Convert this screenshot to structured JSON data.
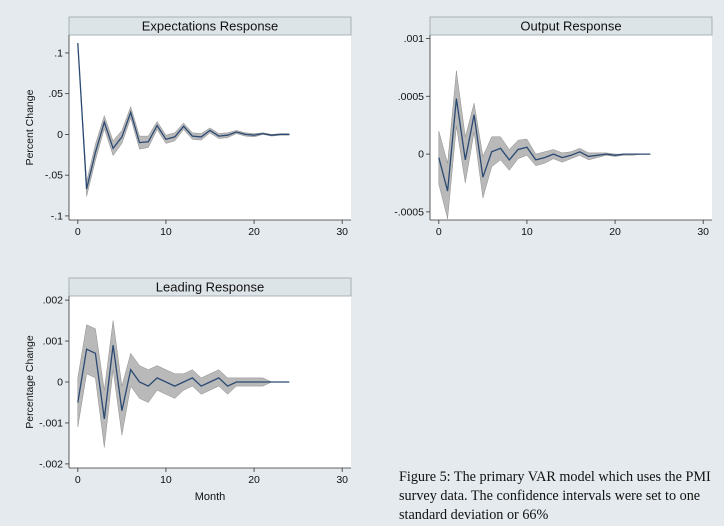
{
  "colors": {
    "page_bg": "#e4eaee",
    "plot_bg": "#ffffff",
    "title_bg": "#dde4e8",
    "band_fill": "#b9b9b9",
    "line": "#2b4a73"
  },
  "caption": "Figure 5: The primary VAR model which uses the PMI survey data. The confidence intervals were set to one standard deviation or 66%",
  "chart_data": [
    {
      "type": "line",
      "title": "Expectations Response",
      "xlabel": "",
      "ylabel": "Percent Change",
      "xlim": [
        -1,
        31
      ],
      "ylim": [
        -0.105,
        0.122
      ],
      "xticks": [
        0,
        10,
        20,
        30
      ],
      "xtick_labels": [
        "0",
        "10",
        "20",
        "30"
      ],
      "yticks": [
        0.1,
        0.05,
        0,
        -0.05,
        -0.1
      ],
      "ytick_labels": [
        ".1",
        ".05",
        "0",
        "-.05",
        "-.1"
      ],
      "x": [
        0,
        1,
        2,
        3,
        4,
        5,
        6,
        7,
        8,
        9,
        10,
        11,
        12,
        13,
        14,
        15,
        16,
        17,
        18,
        19,
        20,
        21,
        22,
        23,
        24
      ],
      "series": [
        {
          "name": "response",
          "values": [
            0.112,
            -0.067,
            -0.022,
            0.015,
            -0.017,
            -0.003,
            0.027,
            -0.01,
            -0.009,
            0.011,
            -0.006,
            -0.003,
            0.01,
            -0.002,
            -0.003,
            0.005,
            -0.002,
            -0.001,
            0.003,
            0.0,
            -0.001,
            0.001,
            -0.001,
            0.0,
            0.0
          ]
        },
        {
          "name": "upper",
          "values": [
            0.112,
            -0.058,
            -0.012,
            0.023,
            -0.008,
            0.005,
            0.034,
            -0.002,
            -0.002,
            0.016,
            -0.001,
            0.002,
            0.014,
            0.002,
            0.001,
            0.008,
            0.001,
            0.002,
            0.005,
            0.002,
            0.001,
            0.002,
            0.0,
            0.001,
            0.001
          ]
        },
        {
          "name": "lower",
          "values": [
            0.112,
            -0.076,
            -0.032,
            0.007,
            -0.026,
            -0.011,
            0.02,
            -0.018,
            -0.016,
            0.006,
            -0.011,
            -0.008,
            0.006,
            -0.006,
            -0.007,
            0.002,
            -0.005,
            -0.004,
            0.001,
            -0.002,
            -0.003,
            0.0,
            -0.002,
            -0.001,
            -0.001
          ]
        }
      ]
    },
    {
      "type": "line",
      "title": "Output Response",
      "xlabel": "",
      "ylabel": "",
      "xlim": [
        -1,
        31
      ],
      "ylim": [
        -0.00057,
        0.00103
      ],
      "xticks": [
        0,
        10,
        20,
        30
      ],
      "xtick_labels": [
        "0",
        "10",
        "20",
        "30"
      ],
      "yticks": [
        0.001,
        0.0005,
        0,
        -0.0005
      ],
      "ytick_labels": [
        ".001",
        ".0005",
        "0",
        "-.0005"
      ],
      "x": [
        0,
        1,
        2,
        3,
        4,
        5,
        6,
        7,
        8,
        9,
        10,
        11,
        12,
        13,
        14,
        15,
        16,
        17,
        18,
        19,
        20,
        21,
        22,
        23,
        24
      ],
      "series": [
        {
          "name": "response",
          "values": [
            -3e-05,
            -0.00032,
            0.00048,
            -5e-05,
            0.00034,
            -0.0002,
            2e-05,
            5e-05,
            -5e-05,
            4e-05,
            6e-05,
            -5e-05,
            -3e-05,
            0.0,
            -3e-05,
            -1e-05,
            2e-05,
            -2e-05,
            -1e-05,
            0.0,
            -1e-05,
            0.0,
            0.0,
            0.0,
            0.0
          ]
        },
        {
          "name": "upper",
          "values": [
            0.0002,
            -8e-05,
            0.00072,
            0.00015,
            0.00044,
            -2e-05,
            0.00015,
            0.00015,
            4e-05,
            0.00012,
            0.00013,
            0.0,
            2e-05,
            4e-05,
            1e-05,
            2e-05,
            5e-05,
            1e-05,
            1e-05,
            1e-05,
            0.0,
            0.0,
            0.0,
            0.0,
            0.0
          ]
        },
        {
          "name": "lower",
          "values": [
            -0.00026,
            -0.00056,
            0.00024,
            -0.00025,
            0.00019,
            -0.00038,
            -0.00011,
            -5e-05,
            -0.00014,
            -4e-05,
            -1e-05,
            -0.0001,
            -8e-05,
            -4e-05,
            -7e-05,
            -4e-05,
            -1e-05,
            -5e-05,
            -3e-05,
            -1e-05,
            -2e-05,
            -1e-05,
            -1e-05,
            0.0,
            0.0
          ]
        }
      ]
    },
    {
      "type": "line",
      "title": "Leading Response",
      "xlabel": "Month",
      "ylabel": "Percentage Change",
      "xlim": [
        -1,
        31
      ],
      "ylim": [
        -0.0021,
        0.0021
      ],
      "xticks": [
        0,
        10,
        20,
        30
      ],
      "xtick_labels": [
        "0",
        "10",
        "20",
        "30"
      ],
      "yticks": [
        0.002,
        0.001,
        0,
        -0.001,
        -0.002
      ],
      "ytick_labels": [
        ".002",
        ".001",
        "0",
        "-.001",
        "-.002"
      ],
      "x": [
        0,
        1,
        2,
        3,
        4,
        5,
        6,
        7,
        8,
        9,
        10,
        11,
        12,
        13,
        14,
        15,
        16,
        17,
        18,
        19,
        20,
        21,
        22,
        23,
        24
      ],
      "series": [
        {
          "name": "response",
          "values": [
            -0.0005,
            0.0008,
            0.0007,
            -0.0009,
            0.0009,
            -0.0007,
            0.0003,
            0.0,
            -0.0001,
            0.0001,
            0.0,
            -0.0001,
            0.0,
            0.0001,
            -0.0001,
            0.0,
            0.0001,
            -0.0001,
            0.0,
            0.0,
            0.0,
            0.0,
            0.0,
            0.0,
            0.0
          ]
        },
        {
          "name": "upper",
          "values": [
            0.0001,
            0.0014,
            0.0013,
            -0.0002,
            0.0015,
            -0.0001,
            0.0007,
            0.0004,
            0.0003,
            0.0004,
            0.0003,
            0.0002,
            0.0002,
            0.0003,
            0.0001,
            0.0002,
            0.0003,
            0.0001,
            0.0001,
            0.0001,
            0.0001,
            0.0001,
            0.0,
            0.0,
            0.0
          ]
        },
        {
          "name": "lower",
          "values": [
            -0.0011,
            0.0002,
            0.0001,
            -0.0016,
            0.0003,
            -0.0013,
            -0.0001,
            -0.0004,
            -0.0005,
            -0.0002,
            -0.0003,
            -0.0004,
            -0.0002,
            -0.0001,
            -0.0003,
            -0.0002,
            -0.0001,
            -0.0003,
            -0.0001,
            -0.0001,
            -0.0001,
            -0.0001,
            0.0,
            0.0,
            0.0
          ]
        }
      ]
    }
  ]
}
